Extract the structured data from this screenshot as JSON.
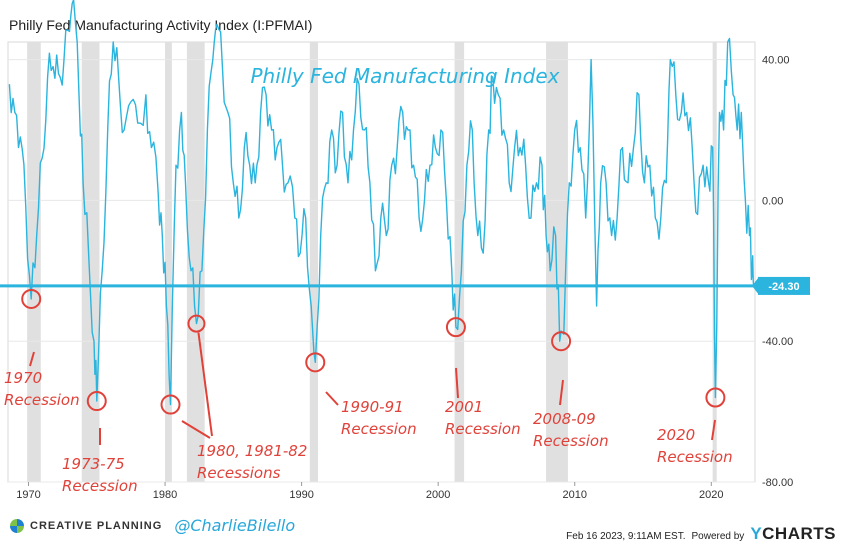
{
  "header": {
    "title": "Philly Fed Manufacturing Activity Index (I:PFMAI)"
  },
  "colors": {
    "line": "#2ab4de",
    "recession": "#e0e0e0",
    "annotation": "#e0423a",
    "last_value_bg": "#2ab4de"
  },
  "chart_data": {
    "type": "line",
    "title": "Philly Fed Manufacturing Index",
    "x_ticks": [
      "1970",
      "1980",
      "1990",
      "2000",
      "2010",
      "2020"
    ],
    "y_ticks": [
      "40.00",
      "0.00",
      "-40.00",
      "-80.00"
    ],
    "ylim": [
      -80,
      45
    ],
    "xlim": [
      1968.5,
      2023.2
    ],
    "last_value": -24.3,
    "last_value_label": "-24.30",
    "recession_bands": [
      [
        1969.9,
        1970.9
      ],
      [
        1973.9,
        1975.2
      ],
      [
        1980.0,
        1980.5
      ],
      [
        1981.6,
        1982.9
      ],
      [
        1990.6,
        1991.2
      ],
      [
        2001.2,
        2001.9
      ],
      [
        2007.9,
        2009.5
      ],
      [
        2020.1,
        2020.4
      ]
    ],
    "series": [
      {
        "values": [
          [
            1968.6,
            33
          ],
          [
            1969.0,
            25
          ],
          [
            1969.4,
            18
          ],
          [
            1969.8,
            -2
          ],
          [
            1970.2,
            -28
          ],
          [
            1970.6,
            -10
          ],
          [
            1971.0,
            12
          ],
          [
            1971.4,
            35
          ],
          [
            1971.8,
            38
          ],
          [
            1972.2,
            36
          ],
          [
            1972.6,
            40
          ],
          [
            1973.0,
            48
          ],
          [
            1973.3,
            57
          ],
          [
            1973.7,
            30
          ],
          [
            1974.0,
            5
          ],
          [
            1974.4,
            -15
          ],
          [
            1974.8,
            -40
          ],
          [
            1975.0,
            -57
          ],
          [
            1975.4,
            -20
          ],
          [
            1975.8,
            20
          ],
          [
            1976.2,
            45
          ],
          [
            1976.6,
            35
          ],
          [
            1977.0,
            20
          ],
          [
            1977.5,
            28
          ],
          [
            1978.0,
            22
          ],
          [
            1978.6,
            30
          ],
          [
            1979.0,
            15
          ],
          [
            1979.5,
            2
          ],
          [
            1979.8,
            -10
          ],
          [
            1980.1,
            -30
          ],
          [
            1980.4,
            -58
          ],
          [
            1980.8,
            10
          ],
          [
            1981.2,
            25
          ],
          [
            1981.5,
            5
          ],
          [
            1981.9,
            -20
          ],
          [
            1982.3,
            -35
          ],
          [
            1982.7,
            -20
          ],
          [
            1983.1,
            20
          ],
          [
            1983.5,
            40
          ],
          [
            1983.8,
            50
          ],
          [
            1984.2,
            38
          ],
          [
            1984.6,
            25
          ],
          [
            1985.0,
            5
          ],
          [
            1985.4,
            -5
          ],
          [
            1985.8,
            15
          ],
          [
            1986.2,
            10
          ],
          [
            1986.6,
            5
          ],
          [
            1987.0,
            25
          ],
          [
            1987.4,
            30
          ],
          [
            1987.8,
            20
          ],
          [
            1988.2,
            15
          ],
          [
            1988.6,
            10
          ],
          [
            1989.0,
            5
          ],
          [
            1989.5,
            -5
          ],
          [
            1989.9,
            -15
          ],
          [
            1990.3,
            -5
          ],
          [
            1990.7,
            -30
          ],
          [
            1991.0,
            -46
          ],
          [
            1991.4,
            -10
          ],
          [
            1991.8,
            5
          ],
          [
            1992.2,
            20
          ],
          [
            1992.6,
            10
          ],
          [
            1993.0,
            25
          ],
          [
            1993.4,
            5
          ],
          [
            1993.8,
            20
          ],
          [
            1994.2,
            33
          ],
          [
            1994.6,
            20
          ],
          [
            1995.0,
            5
          ],
          [
            1995.4,
            -20
          ],
          [
            1995.8,
            -5
          ],
          [
            1996.2,
            -10
          ],
          [
            1996.6,
            10
          ],
          [
            1997.0,
            15
          ],
          [
            1997.4,
            25
          ],
          [
            1997.8,
            20
          ],
          [
            1998.2,
            10
          ],
          [
            1998.6,
            -5
          ],
          [
            1999.0,
            0
          ],
          [
            1999.4,
            10
          ],
          [
            1999.8,
            15
          ],
          [
            2000.2,
            20
          ],
          [
            2000.6,
            0
          ],
          [
            2001.0,
            -20
          ],
          [
            2001.3,
            -36
          ],
          [
            2001.7,
            -20
          ],
          [
            2002.1,
            10
          ],
          [
            2002.5,
            20
          ],
          [
            2002.9,
            -10
          ],
          [
            2003.3,
            -15
          ],
          [
            2003.7,
            20
          ],
          [
            2004.0,
            35
          ],
          [
            2004.4,
            30
          ],
          [
            2004.8,
            20
          ],
          [
            2005.2,
            5
          ],
          [
            2005.6,
            15
          ],
          [
            2006.0,
            15
          ],
          [
            2006.4,
            10
          ],
          [
            2006.8,
            -5
          ],
          [
            2007.2,
            5
          ],
          [
            2007.6,
            10
          ],
          [
            2007.9,
            -10
          ],
          [
            2008.2,
            -20
          ],
          [
            2008.6,
            -10
          ],
          [
            2008.9,
            -40
          ],
          [
            2009.2,
            -38
          ],
          [
            2009.6,
            5
          ],
          [
            2010.0,
            20
          ],
          [
            2010.4,
            15
          ],
          [
            2010.8,
            -5
          ],
          [
            2011.2,
            40
          ],
          [
            2011.6,
            -30
          ],
          [
            2011.9,
            5
          ],
          [
            2012.3,
            5
          ],
          [
            2012.7,
            -10
          ],
          [
            2013.1,
            -5
          ],
          [
            2013.5,
            15
          ],
          [
            2013.9,
            5
          ],
          [
            2014.3,
            15
          ],
          [
            2014.7,
            30
          ],
          [
            2015.1,
            5
          ],
          [
            2015.5,
            10
          ],
          [
            2015.9,
            -5
          ],
          [
            2016.3,
            -5
          ],
          [
            2016.7,
            5
          ],
          [
            2017.0,
            40
          ],
          [
            2017.4,
            30
          ],
          [
            2017.8,
            25
          ],
          [
            2018.2,
            25
          ],
          [
            2018.6,
            15
          ],
          [
            2019.0,
            -4
          ],
          [
            2019.4,
            10
          ],
          [
            2019.8,
            5
          ],
          [
            2020.1,
            15
          ],
          [
            2020.3,
            -56
          ],
          [
            2020.6,
            25
          ],
          [
            2020.9,
            20
          ],
          [
            2021.2,
            45
          ],
          [
            2021.6,
            30
          ],
          [
            2021.9,
            20
          ],
          [
            2022.2,
            25
          ],
          [
            2022.5,
            0
          ],
          [
            2022.8,
            -10
          ],
          [
            2023.0,
            -20
          ],
          [
            2023.1,
            -24.3
          ]
        ]
      }
    ]
  },
  "annotations": [
    {
      "lines": [
        "1970",
        "Recession"
      ],
      "circle": [
        1970.2,
        -28
      ]
    },
    {
      "lines": [
        "1973-75",
        "Recession"
      ],
      "circle": [
        1975.0,
        -57
      ]
    },
    {
      "lines": [
        "1980, 1981-82",
        "Recessions"
      ],
      "circle": [
        1980.4,
        -58
      ],
      "circle2": [
        1982.3,
        -35
      ]
    },
    {
      "lines": [
        "1990-91",
        "Recession"
      ],
      "circle": [
        1991.0,
        -46
      ]
    },
    {
      "lines": [
        "2001",
        "Recession"
      ],
      "circle": [
        2001.3,
        -36
      ]
    },
    {
      "lines": [
        "2008-09",
        "Recession"
      ],
      "circle": [
        2009.0,
        -40
      ]
    },
    {
      "lines": [
        "2020",
        "Recession"
      ],
      "circle": [
        2020.3,
        -56
      ]
    }
  ],
  "footer": {
    "brand": "CREATIVE PLANNING",
    "handle": "@CharlieBilello",
    "timestamp": "Feb 16 2023, 9:11AM EST.",
    "powered_by": "Powered by",
    "ycharts_y": "Y",
    "ycharts_rest": "CHARTS"
  }
}
